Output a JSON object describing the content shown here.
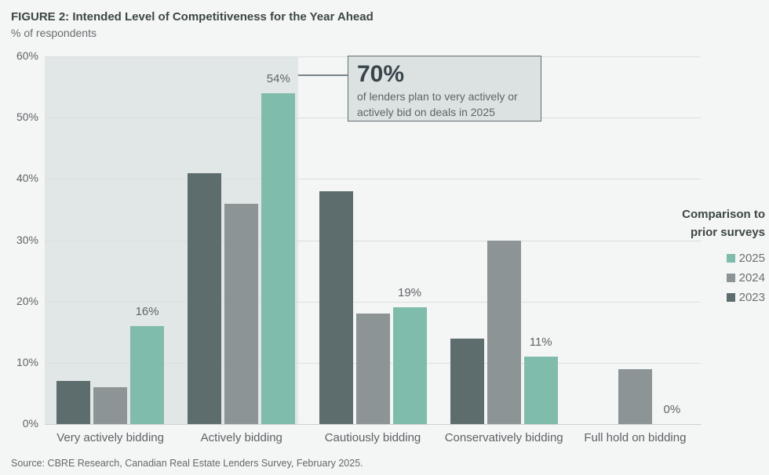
{
  "title": "FIGURE 2: Intended Level of Competitiveness for the Year Ahead",
  "subtitle": "% of respondents",
  "source": "Source: CBRE Research, Canadian Real Estate Lenders Survey, February 2025.",
  "callout": {
    "headline": "70%",
    "line1": "of lenders plan to very actively or",
    "line2": "actively bid on deals in 2025"
  },
  "legend": {
    "title_line1": "Comparison to",
    "title_line2": "prior surveys",
    "items": [
      {
        "label": "2025",
        "color": "#7fbcab"
      },
      {
        "label": "2024",
        "color": "#8c9496"
      },
      {
        "label": "2023",
        "color": "#5d6c6c"
      }
    ]
  },
  "colors": {
    "page_background": "#f4f5f5",
    "highlight_band": "#e1e6e6",
    "callout_background": "#dce2e2",
    "callout_border": "#626e70",
    "gridline": "#dbdfdf",
    "accent_2025": "#7fbcab",
    "gray_2024": "#8c9496",
    "gray_2023": "#5d6c6c"
  },
  "chart_data": {
    "type": "bar",
    "title": "FIGURE 2: Intended Level of Competitiveness for the Year Ahead",
    "ylabel": "% of respondents",
    "categories": [
      "Very actively bidding",
      "Actively bidding",
      "Cautiously bidding",
      "Conservatively bidding",
      "Full hold on bidding"
    ],
    "series": [
      {
        "name": "2023",
        "color": "#5d6c6c",
        "values": [
          7,
          41,
          38,
          14,
          0
        ]
      },
      {
        "name": "2024",
        "color": "#8c9496",
        "values": [
          6,
          36,
          18,
          30,
          9
        ]
      },
      {
        "name": "2025",
        "color": "#7fbcab",
        "values": [
          16,
          54,
          19,
          11,
          0
        ],
        "labels": [
          "16%",
          "54%",
          "19%",
          "11%",
          "0%"
        ]
      }
    ],
    "ylim": [
      0,
      60
    ],
    "ytick_values": [
      0,
      10,
      20,
      30,
      40,
      50,
      60
    ],
    "yticks": [
      "0%",
      "10%",
      "20%",
      "30%",
      "40%",
      "50%",
      "60%"
    ],
    "grid": true,
    "legend_position": "right",
    "highlight_band": {
      "covers_first_n_categories": 2,
      "color": "#e1e6e6"
    },
    "annotation": "70% of lenders plan to very actively or actively bid on deals in 2025"
  }
}
